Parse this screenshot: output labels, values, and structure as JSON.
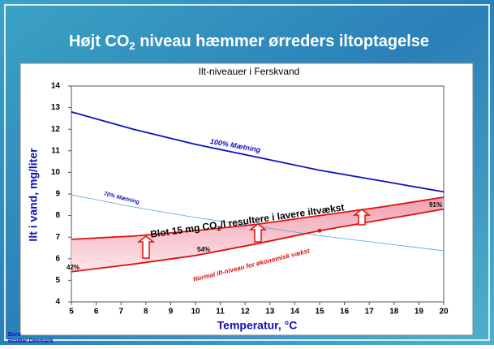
{
  "chart_data": {
    "type": "line",
    "title": [
      "Højt CO",
      "2",
      " niveau hæmmer ørreders iltoptagelse"
    ],
    "subtitle": "Ilt-niveauer i Ferskvand",
    "x_label": "Temperatur, °C",
    "y_label": "Ilt i vand, mg/liter",
    "x": [
      5,
      7.5,
      10,
      12.5,
      15,
      17.5,
      20
    ],
    "xlim": [
      5,
      20
    ],
    "xticks": [
      5,
      6,
      7,
      8,
      9,
      10,
      11,
      12,
      13,
      14,
      15,
      16,
      17,
      18,
      19,
      20
    ],
    "ylim": [
      4,
      14
    ],
    "yticks": [
      4,
      5,
      6,
      7,
      8,
      9,
      10,
      11,
      12,
      13,
      14
    ],
    "series": [
      {
        "name": "100% Mætning",
        "color": "#1010b8",
        "values": [
          12.8,
          12.0,
          11.3,
          10.7,
          10.1,
          9.6,
          9.1
        ]
      },
      {
        "name": "70% Mætning",
        "color": "#4aa6e8",
        "values": [
          8.96,
          8.4,
          7.91,
          7.49,
          7.07,
          6.72,
          6.37
        ]
      },
      {
        "color": "#e01010",
        "values": [
          6.9,
          7.05,
          7.3,
          7.6,
          8.0,
          8.4,
          8.85
        ]
      },
      {
        "name": "Normal ilt-niveau for økonomisk vækst",
        "color": "#e01010",
        "values": [
          5.4,
          5.75,
          6.15,
          6.7,
          7.3,
          7.8,
          8.3
        ]
      }
    ],
    "annotation": [
      "Blot 15 mg CO",
      "2",
      "/l resultere i lavere iltvækst"
    ],
    "percent_labels": [
      "42%",
      "54%",
      "91%"
    ],
    "footer": [
      "Euro",
      "BioMar Denmark"
    ]
  }
}
